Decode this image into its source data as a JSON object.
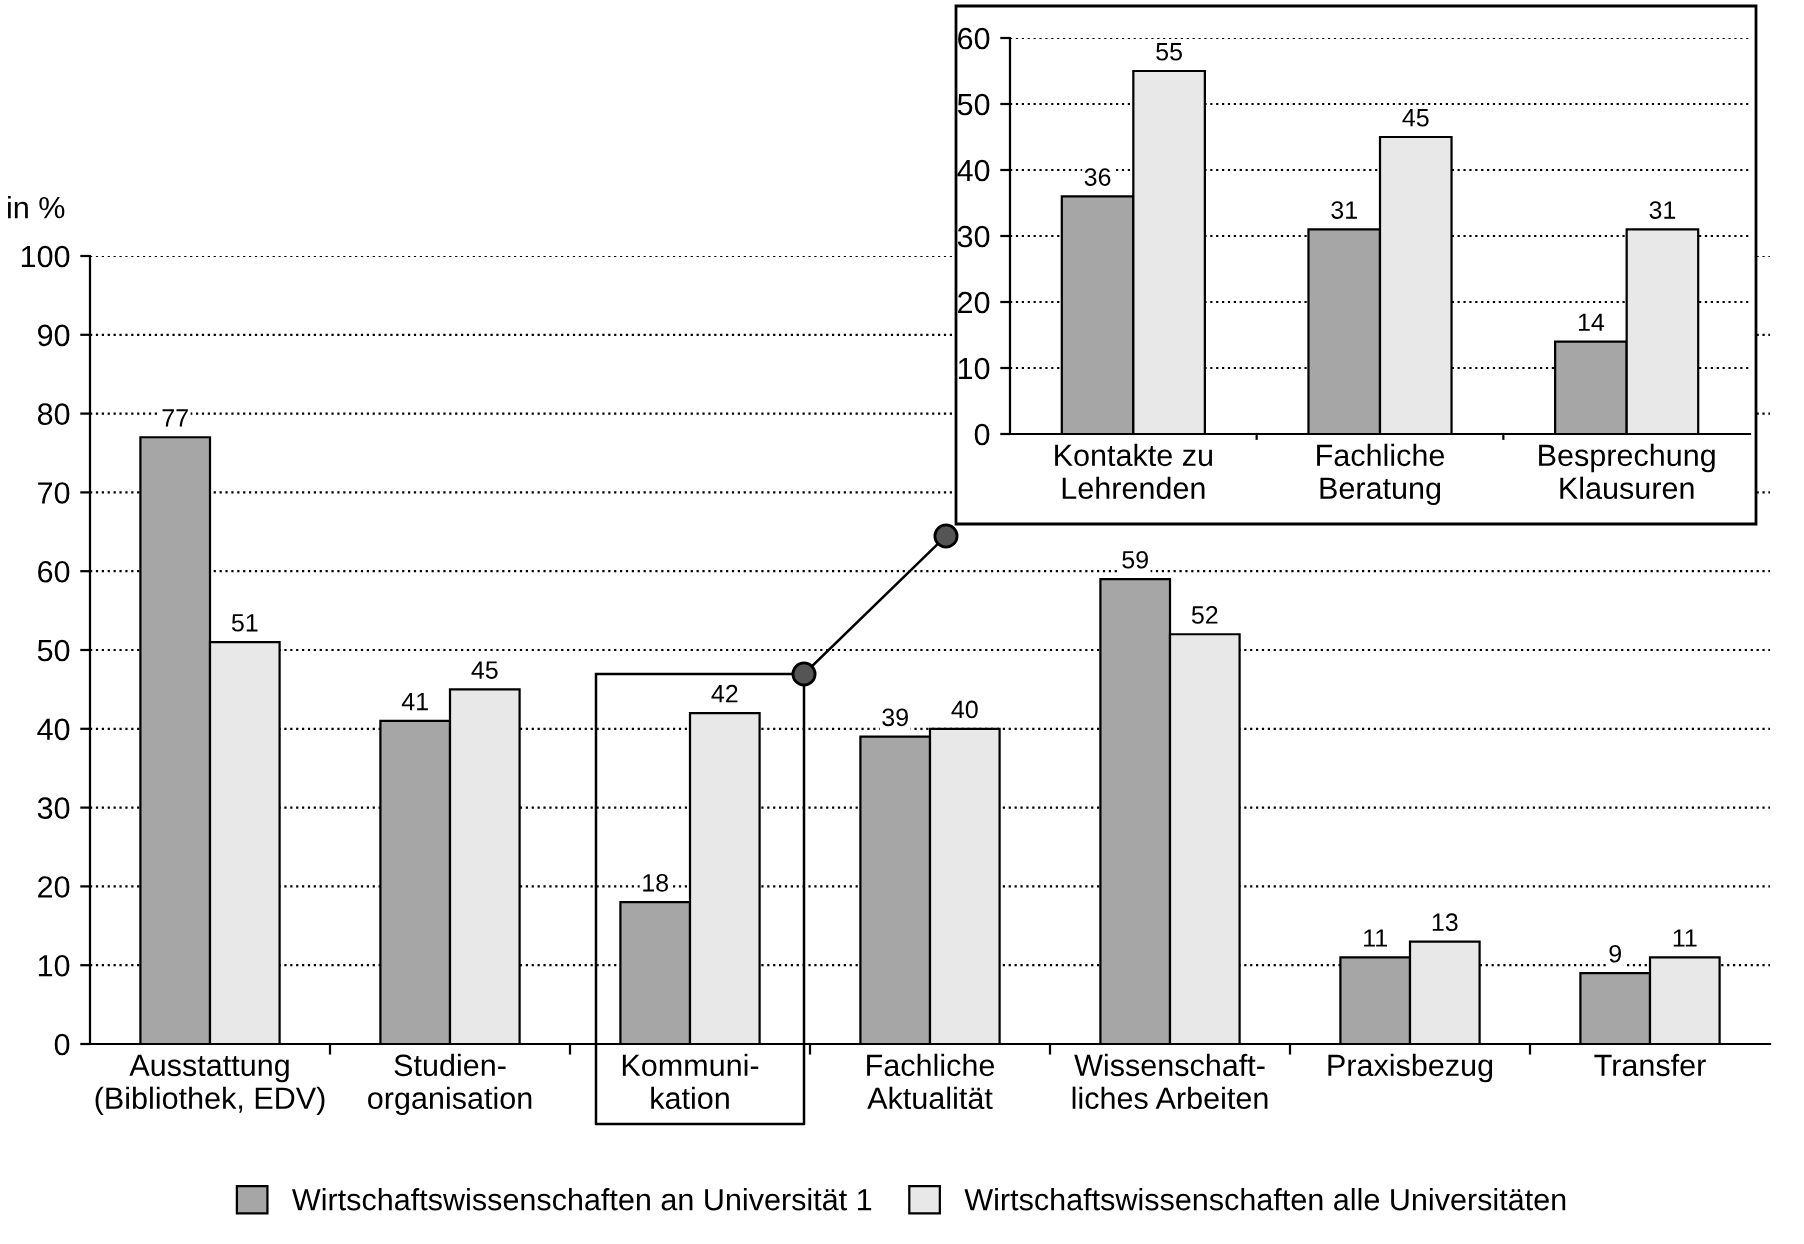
{
  "chart_data": [
    {
      "type": "bar",
      "ylabel": "in %",
      "categories": [
        "Ausstattung\n(Bibliothek, EDV)",
        "Studien-\norganisation",
        "Kommuni-\nkation",
        "Fachliche\nAktualität",
        "Wissenschaft-\nliches Arbeiten",
        "Praxisbezug",
        "Transfer"
      ],
      "series": [
        {
          "name": "Wirtschaftswissenschaften an Universität 1",
          "color": "#a6a6a6",
          "values": [
            77,
            41,
            18,
            39,
            59,
            11,
            9
          ]
        },
        {
          "name": "Wirtschaftswissenschaften alle Universitäten",
          "color": "#e8e8e8",
          "values": [
            51,
            45,
            42,
            40,
            52,
            13,
            11
          ]
        }
      ],
      "ylim": [
        0,
        100
      ],
      "yticks": [
        0,
        10,
        20,
        30,
        40,
        50,
        60,
        70,
        80,
        90,
        100
      ],
      "grid": "y",
      "legend": "bottom",
      "data_labels": true
    },
    {
      "type": "bar",
      "categories": [
        "Kontakte zu\nLehrenden",
        "Fachliche\nBeratung",
        "Besprechung\nKlausuren"
      ],
      "series": [
        {
          "color": "#a6a6a6",
          "values": [
            36,
            31,
            14
          ]
        },
        {
          "color": "#e8e8e8",
          "values": [
            55,
            45,
            31
          ]
        }
      ],
      "ylim": [
        0,
        60
      ],
      "yticks": [
        0,
        10,
        20,
        30,
        40,
        50,
        60
      ],
      "grid": "y",
      "data_labels": true
    }
  ]
}
